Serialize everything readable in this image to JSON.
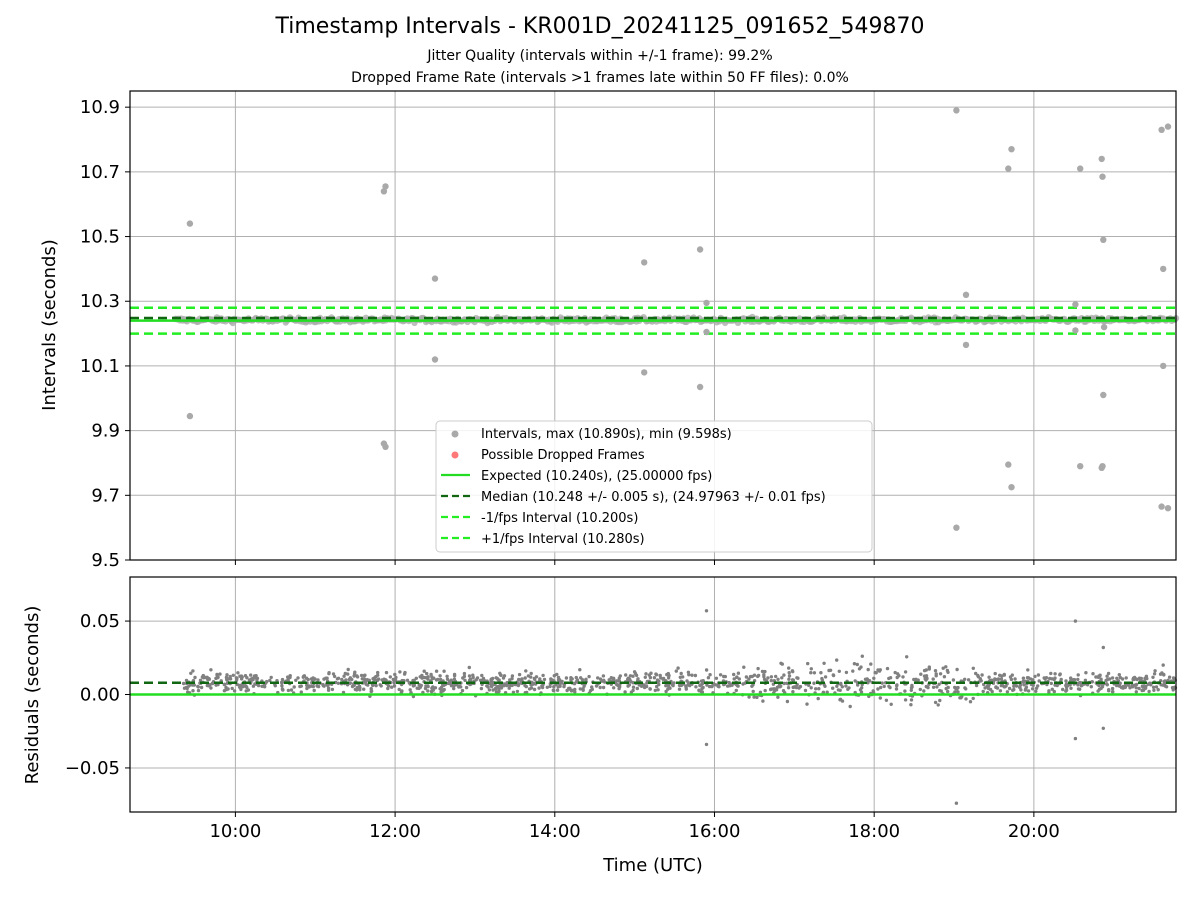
{
  "chart_data": [
    {
      "type": "scatter",
      "title": "Timestamp Intervals - KR001D_20241125_091652_549870",
      "subtitle_lines": [
        "Jitter Quality (intervals within +/-1 frame): 99.2%",
        "Dropped Frame Rate (intervals >1 frames late within 50 FF files): 0.0%"
      ],
      "ylabel": "Intervals (seconds)",
      "xlabel": "",
      "x_unit": "hours UTC",
      "xlim": [
        8.68,
        21.78
      ],
      "ylim": [
        9.5,
        10.95
      ],
      "yticks": [
        9.5,
        9.7,
        9.9,
        10.1,
        10.3,
        10.5,
        10.7,
        10.9
      ],
      "ytick_labels": [
        "9.5",
        "9.7",
        "9.9",
        "10.1",
        "10.3",
        "10.5",
        "10.7",
        "10.9"
      ],
      "grid": true,
      "legend_position": "lower-center",
      "legend": [
        "Intervals, max (10.890s), min (9.598s)",
        "Possible Dropped Frames",
        "Expected (10.240s), (25.00000 fps)",
        "Median (10.248 +/- 0.005 s), (24.97963 +/- 0.01 fps)",
        "-1/fps Interval (10.200s)",
        "+1/fps Interval (10.280s)"
      ],
      "hlines": {
        "expected": 10.24,
        "median": 10.248,
        "minus_1fps": 10.2,
        "plus_1fps": 10.28
      },
      "series": [
        {
          "name": "Intervals, max (10.890s), min (9.598s)",
          "band": {
            "x_start": 9.25,
            "x_end": 21.78,
            "center": 10.242,
            "spread": 0.005
          },
          "outliers": [
            [
              9.43,
              10.54
            ],
            [
              9.43,
              9.945
            ],
            [
              11.86,
              10.64
            ],
            [
              11.88,
              10.655
            ],
            [
              11.86,
              9.86
            ],
            [
              11.88,
              9.85
            ],
            [
              12.5,
              10.37
            ],
            [
              12.5,
              10.12
            ],
            [
              15.12,
              10.42
            ],
            [
              15.12,
              10.08
            ],
            [
              15.82,
              10.46
            ],
            [
              15.82,
              10.035
            ],
            [
              15.9,
              10.295
            ],
            [
              15.9,
              10.205
            ],
            [
              19.03,
              10.89
            ],
            [
              19.03,
              9.6
            ],
            [
              19.15,
              10.32
            ],
            [
              19.15,
              10.165
            ],
            [
              19.68,
              10.71
            ],
            [
              19.72,
              10.77
            ],
            [
              19.68,
              9.795
            ],
            [
              19.72,
              9.725
            ],
            [
              20.52,
              10.29
            ],
            [
              20.52,
              10.21
            ],
            [
              20.58,
              10.71
            ],
            [
              20.58,
              9.79
            ],
            [
              20.85,
              10.74
            ],
            [
              20.86,
              10.685
            ],
            [
              20.87,
              10.49
            ],
            [
              20.85,
              9.785
            ],
            [
              20.86,
              9.79
            ],
            [
              20.87,
              10.01
            ],
            [
              20.88,
              10.22
            ],
            [
              21.6,
              10.83
            ],
            [
              21.68,
              10.84
            ],
            [
              21.6,
              9.665
            ],
            [
              21.68,
              9.66
            ],
            [
              21.62,
              10.4
            ],
            [
              21.62,
              10.1
            ]
          ]
        }
      ]
    },
    {
      "type": "scatter",
      "title": "",
      "ylabel": "Residuals (seconds)",
      "xlabel": "Time (UTC)",
      "x_unit": "hours UTC",
      "xlim": [
        8.68,
        21.78
      ],
      "ylim": [
        -0.08,
        0.08
      ],
      "yticks": [
        -0.05,
        0.0,
        0.05
      ],
      "ytick_labels": [
        "−0.05",
        "0.00",
        "0.05"
      ],
      "xticks": [
        10,
        12,
        14,
        16,
        18,
        20
      ],
      "xtick_labels": [
        "10:00",
        "12:00",
        "14:00",
        "16:00",
        "18:00",
        "20:00"
      ],
      "grid": true,
      "hlines": {
        "zero": 0.0,
        "median": 0.008
      },
      "series": [
        {
          "name": "Residuals",
          "band": {
            "x_start": 9.35,
            "x_end": 21.78,
            "center": 0.008,
            "spread": 0.005,
            "wide_x": [
              16.3,
              19.3
            ],
            "wide_spread": 0.009
          },
          "outliers": [
            [
              15.9,
              0.057
            ],
            [
              15.9,
              -0.034
            ],
            [
              19.03,
              -0.074
            ],
            [
              20.52,
              0.05
            ],
            [
              20.52,
              -0.03
            ],
            [
              20.87,
              0.032
            ],
            [
              20.87,
              -0.023
            ],
            [
              21.62,
              0.02
            ],
            [
              19.15,
              -0.003
            ]
          ]
        }
      ]
    }
  ],
  "colors": {
    "points": "#808080",
    "points_light": "#a9a9a9",
    "dropped": "#ff4040",
    "expected": "#22dd22",
    "median": "#116611",
    "fps_bounds": "#22ee22",
    "grid": "#b0b0b0"
  }
}
